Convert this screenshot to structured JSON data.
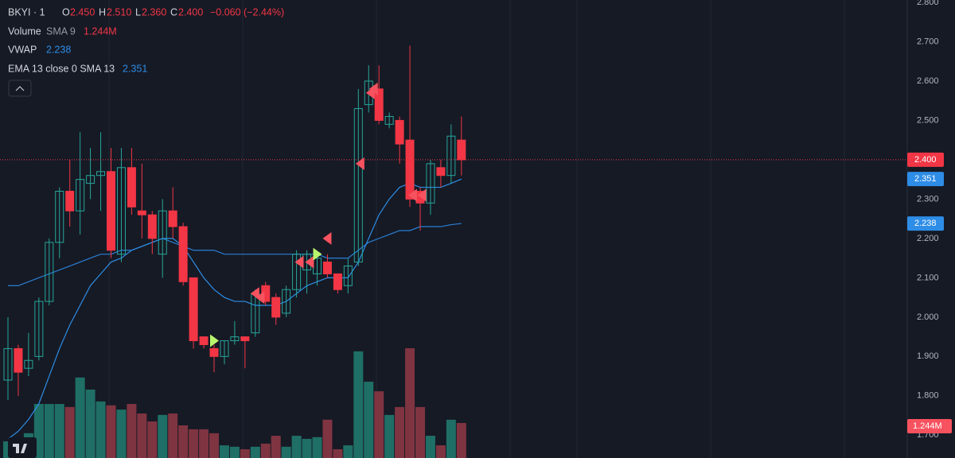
{
  "chart_data": {
    "type": "candlestick",
    "symbol": "BKYI · 1",
    "ohlc_labels": {
      "o": "O",
      "h": "H",
      "l": "L",
      "c": "C"
    },
    "last": {
      "open": "2.450",
      "high": "2.510",
      "low": "2.360",
      "close": "2.400",
      "change": "−0.060 (−2.44%)"
    },
    "last_price": {
      "value": 2.4,
      "label": "2.400"
    },
    "open": [
      1.84,
      1.92,
      1.87,
      1.9,
      2.04,
      2.19,
      2.32,
      2.27,
      2.34,
      2.36,
      2.37,
      2.16,
      2.38,
      2.27,
      2.26,
      2.16,
      2.27,
      2.23,
      2.1,
      1.95,
      1.92,
      1.9,
      1.94,
      1.95,
      1.96,
      2.08,
      2.05,
      2.01,
      2.07,
      2.12,
      2.11,
      2.14,
      2.11,
      2.08,
      2.14,
      2.54,
      2.58,
      2.49,
      2.5,
      2.45,
      2.32,
      2.29,
      2.38,
      2.36,
      2.45
    ],
    "high": [
      2.0,
      1.93,
      1.96,
      2.05,
      2.2,
      2.33,
      2.4,
      2.47,
      2.43,
      2.47,
      2.43,
      2.43,
      2.43,
      2.39,
      2.27,
      2.3,
      2.33,
      2.24,
      2.1,
      1.95,
      1.93,
      1.94,
      1.99,
      1.95,
      2.07,
      2.09,
      2.06,
      2.08,
      2.17,
      2.17,
      2.16,
      2.16,
      2.11,
      2.15,
      2.58,
      2.64,
      2.64,
      2.52,
      2.51,
      2.69,
      2.33,
      2.4,
      2.4,
      2.49,
      2.51
    ],
    "low": [
      1.79,
      1.8,
      1.85,
      1.89,
      2.03,
      2.15,
      2.23,
      2.21,
      2.3,
      2.27,
      2.15,
      2.14,
      2.26,
      2.2,
      2.16,
      2.1,
      2.2,
      2.08,
      1.92,
      1.92,
      1.86,
      1.88,
      1.93,
      1.87,
      1.95,
      2.03,
      1.98,
      2.0,
      2.05,
      2.06,
      2.08,
      2.1,
      2.06,
      2.06,
      2.13,
      2.52,
      2.49,
      2.48,
      2.39,
      2.28,
      2.22,
      2.26,
      2.33,
      2.34,
      2.36
    ],
    "close": [
      1.92,
      1.86,
      1.89,
      2.04,
      2.19,
      2.32,
      2.27,
      2.35,
      2.36,
      2.37,
      2.17,
      2.38,
      2.28,
      2.26,
      2.2,
      2.27,
      2.23,
      2.09,
      1.94,
      1.93,
      1.9,
      1.94,
      1.95,
      1.94,
      2.06,
      2.04,
      2.0,
      2.07,
      2.16,
      2.16,
      2.15,
      2.11,
      2.07,
      2.13,
      2.53,
      2.6,
      2.5,
      2.51,
      2.44,
      2.3,
      2.29,
      2.39,
      2.36,
      2.46,
      2.4
    ],
    "volume": {
      "name": "Volume",
      "study": "SMA 9",
      "value_label": "1.244M",
      "values": [
        0.59,
        0.45,
        0.88,
        1.92,
        1.92,
        1.92,
        1.81,
        2.86,
        2.43,
        2.01,
        1.87,
        1.72,
        1.92,
        1.58,
        1.3,
        1.53,
        1.58,
        1.16,
        1.02,
        1.02,
        0.88,
        0.45,
        0.4,
        0.31,
        0.4,
        0.51,
        0.79,
        0.4,
        0.79,
        0.68,
        0.74,
        1.36,
        0.31,
        0.45,
        3.79,
        2.71,
        2.37,
        1.53,
        1.81,
        3.9,
        1.81,
        0.79,
        0.45,
        1.36,
        1.244
      ]
    },
    "series": [
      {
        "name": "VWAP",
        "value_label": "2.238",
        "color": "#2a7fd4",
        "values": [
          2.08,
          2.08,
          2.09,
          2.1,
          2.11,
          2.12,
          2.13,
          2.14,
          2.15,
          2.16,
          2.16,
          2.17,
          2.17,
          2.18,
          2.19,
          2.2,
          2.19,
          2.18,
          2.17,
          2.17,
          2.17,
          2.16,
          2.16,
          2.16,
          2.16,
          2.16,
          2.16,
          2.16,
          2.16,
          2.16,
          2.16,
          2.15,
          2.15,
          2.15,
          2.17,
          2.19,
          2.2,
          2.21,
          2.22,
          2.22,
          2.23,
          2.23,
          2.23,
          2.235,
          2.238
        ]
      },
      {
        "name": "EMA 13 close 0 SMA 13",
        "value_label": "2.351",
        "color": "#2e8de6",
        "values": [
          1.69,
          1.71,
          1.74,
          1.78,
          1.85,
          1.92,
          1.98,
          2.03,
          2.08,
          2.11,
          2.14,
          2.15,
          2.17,
          2.18,
          2.19,
          2.2,
          2.2,
          2.18,
          2.14,
          2.1,
          2.07,
          2.05,
          2.04,
          2.04,
          2.03,
          2.03,
          2.03,
          2.04,
          2.06,
          2.08,
          2.09,
          2.1,
          2.1,
          2.1,
          2.14,
          2.2,
          2.26,
          2.3,
          2.33,
          2.34,
          2.33,
          2.33,
          2.33,
          2.34,
          2.351
        ]
      }
    ],
    "up_color": "#26a69a",
    "down_color": "#f23645",
    "markers": [
      {
        "x": 20,
        "value": 1.94,
        "color": "#b9f46d"
      },
      {
        "x": 24,
        "value": 2.06,
        "color": "#f7525f"
      },
      {
        "x": 24.5,
        "value": 2.05,
        "color": "#f7525f"
      },
      {
        "x": 28.3,
        "value": 2.14,
        "color": "#f7525f"
      },
      {
        "x": 29.3,
        "value": 2.14,
        "color": "#f7525f"
      },
      {
        "x": 30,
        "value": 2.16,
        "color": "#b9f46d"
      },
      {
        "x": 31,
        "value": 2.2,
        "color": "#f7525f"
      },
      {
        "x": 34.2,
        "value": 2.39,
        "color": "#f7525f"
      },
      {
        "x": 35.2,
        "value": 2.57,
        "color": "#f7525f"
      },
      {
        "x": 35.5,
        "value": 2.58,
        "color": "#f7525f"
      },
      {
        "x": 39.3,
        "value": 2.31,
        "color": "#f7525f"
      },
      {
        "x": 40.2,
        "value": 2.31,
        "color": "#f7525f"
      }
    ],
    "ylim": [
      1.642,
      2.806
    ],
    "yticks": [
      {
        "value": 2.8,
        "label": "2.800"
      },
      {
        "value": 2.7,
        "label": "2.700"
      },
      {
        "value": 2.6,
        "label": "2.600"
      },
      {
        "value": 2.5,
        "label": "2.500"
      },
      {
        "value": 2.4,
        "label": "2.400"
      },
      {
        "value": 2.3,
        "label": "2.300"
      },
      {
        "value": 2.2,
        "label": "2.200"
      },
      {
        "value": 2.1,
        "label": "2.100"
      },
      {
        "value": 2.0,
        "label": "2.000"
      },
      {
        "value": 1.9,
        "label": "1.900"
      },
      {
        "value": 1.8,
        "label": "1.800"
      },
      {
        "value": 1.7,
        "label": "1.700"
      }
    ],
    "grid": true
  }
}
